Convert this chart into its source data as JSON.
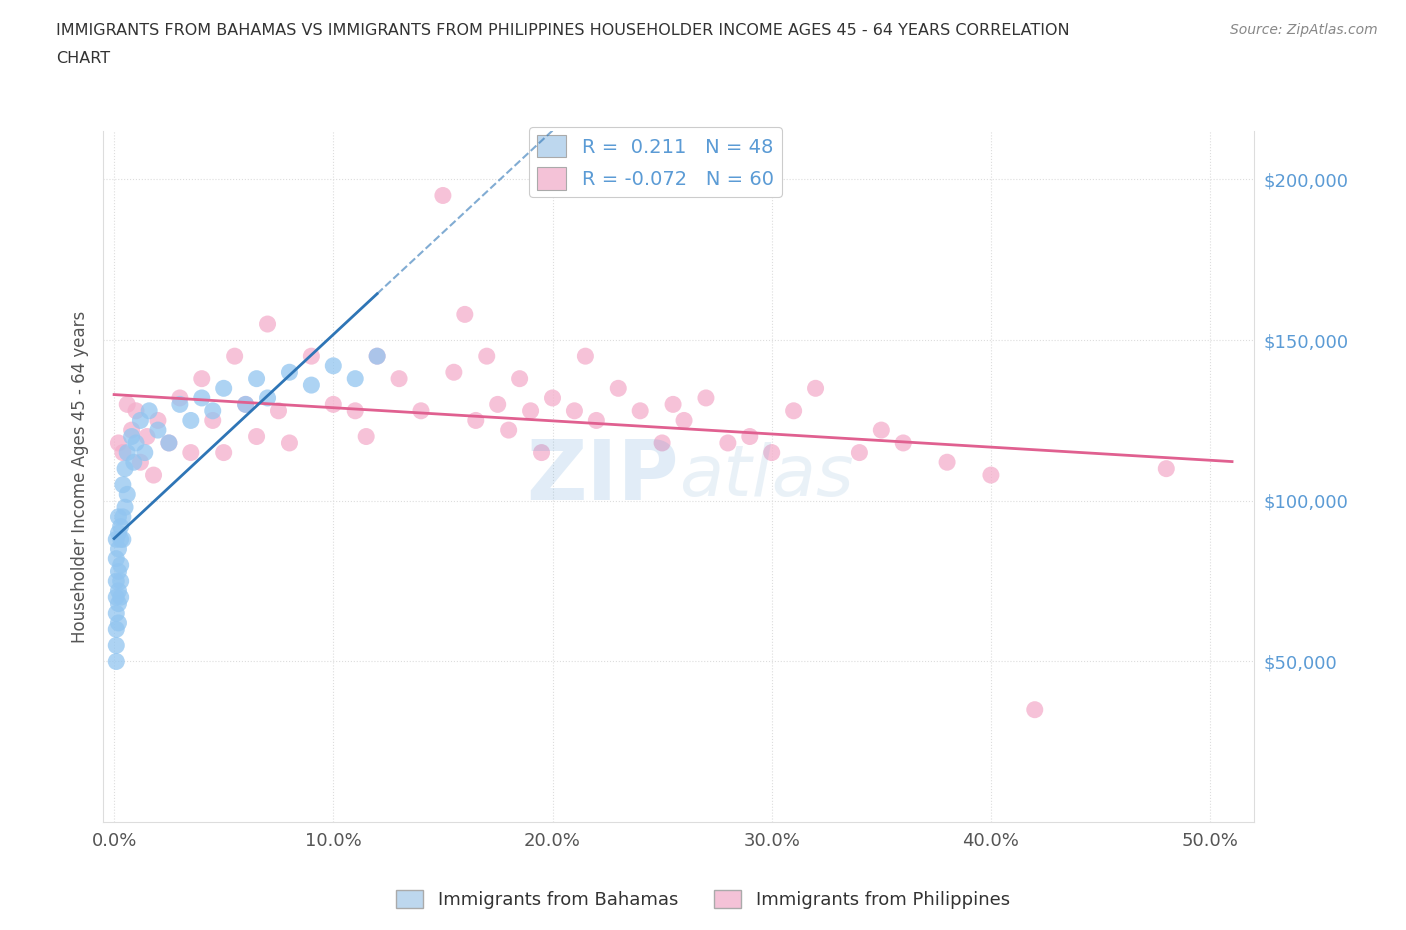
{
  "title_line1": "IMMIGRANTS FROM BAHAMAS VS IMMIGRANTS FROM PHILIPPINES HOUSEHOLDER INCOME AGES 45 - 64 YEARS CORRELATION",
  "title_line2": "CHART",
  "source": "Source: ZipAtlas.com",
  "ylabel": "Householder Income Ages 45 - 64 years",
  "xlabel_ticks": [
    "0.0%",
    "10.0%",
    "20.0%",
    "30.0%",
    "40.0%",
    "50.0%"
  ],
  "xlabel_vals": [
    0.0,
    0.1,
    0.2,
    0.3,
    0.4,
    0.5
  ],
  "ytick_labels": [
    "$50,000",
    "$100,000",
    "$150,000",
    "$200,000"
  ],
  "ytick_vals": [
    50000,
    100000,
    150000,
    200000
  ],
  "ylim": [
    0,
    215000
  ],
  "xlim": [
    -0.005,
    0.52
  ],
  "R_bahamas": 0.211,
  "N_bahamas": 48,
  "R_philippines": -0.072,
  "N_philippines": 60,
  "color_bahamas": "#92C5F0",
  "color_philippines": "#F4AECB",
  "legend_box_color_bahamas": "#BDD7EE",
  "legend_box_color_philippines": "#F4C2D7",
  "trend_color_bahamas": "#2E75B6",
  "trend_color_philippines": "#E06090",
  "watermark_color": "#C5D8EE",
  "grid_color": "#DDDDDD",
  "bahamas_x": [
    0.001,
    0.001,
    0.001,
    0.001,
    0.001,
    0.001,
    0.001,
    0.001,
    0.002,
    0.002,
    0.002,
    0.002,
    0.002,
    0.002,
    0.002,
    0.003,
    0.003,
    0.003,
    0.003,
    0.003,
    0.004,
    0.004,
    0.004,
    0.005,
    0.005,
    0.006,
    0.006,
    0.008,
    0.009,
    0.01,
    0.012,
    0.014,
    0.016,
    0.02,
    0.025,
    0.03,
    0.035,
    0.04,
    0.045,
    0.05,
    0.06,
    0.065,
    0.07,
    0.08,
    0.09,
    0.1,
    0.11,
    0.12
  ],
  "bahamas_y": [
    65000,
    75000,
    82000,
    88000,
    70000,
    60000,
    55000,
    50000,
    72000,
    85000,
    90000,
    78000,
    68000,
    95000,
    62000,
    80000,
    92000,
    88000,
    75000,
    70000,
    95000,
    105000,
    88000,
    110000,
    98000,
    115000,
    102000,
    120000,
    112000,
    118000,
    125000,
    115000,
    128000,
    122000,
    118000,
    130000,
    125000,
    132000,
    128000,
    135000,
    130000,
    138000,
    132000,
    140000,
    136000,
    142000,
    138000,
    145000
  ],
  "philippines_x": [
    0.002,
    0.004,
    0.006,
    0.008,
    0.01,
    0.012,
    0.015,
    0.018,
    0.02,
    0.025,
    0.03,
    0.035,
    0.04,
    0.045,
    0.05,
    0.055,
    0.06,
    0.065,
    0.07,
    0.075,
    0.08,
    0.09,
    0.1,
    0.11,
    0.115,
    0.12,
    0.13,
    0.14,
    0.15,
    0.155,
    0.16,
    0.165,
    0.17,
    0.175,
    0.18,
    0.185,
    0.19,
    0.195,
    0.2,
    0.21,
    0.215,
    0.22,
    0.23,
    0.24,
    0.25,
    0.255,
    0.26,
    0.27,
    0.28,
    0.29,
    0.3,
    0.31,
    0.32,
    0.34,
    0.35,
    0.36,
    0.38,
    0.4,
    0.42,
    0.48
  ],
  "philippines_y": [
    118000,
    115000,
    130000,
    122000,
    128000,
    112000,
    120000,
    108000,
    125000,
    118000,
    132000,
    115000,
    138000,
    125000,
    115000,
    145000,
    130000,
    120000,
    155000,
    128000,
    118000,
    145000,
    130000,
    128000,
    120000,
    145000,
    138000,
    128000,
    195000,
    140000,
    158000,
    125000,
    145000,
    130000,
    122000,
    138000,
    128000,
    115000,
    132000,
    128000,
    145000,
    125000,
    135000,
    128000,
    118000,
    130000,
    125000,
    132000,
    118000,
    120000,
    115000,
    128000,
    135000,
    115000,
    122000,
    118000,
    112000,
    108000,
    35000,
    110000
  ]
}
